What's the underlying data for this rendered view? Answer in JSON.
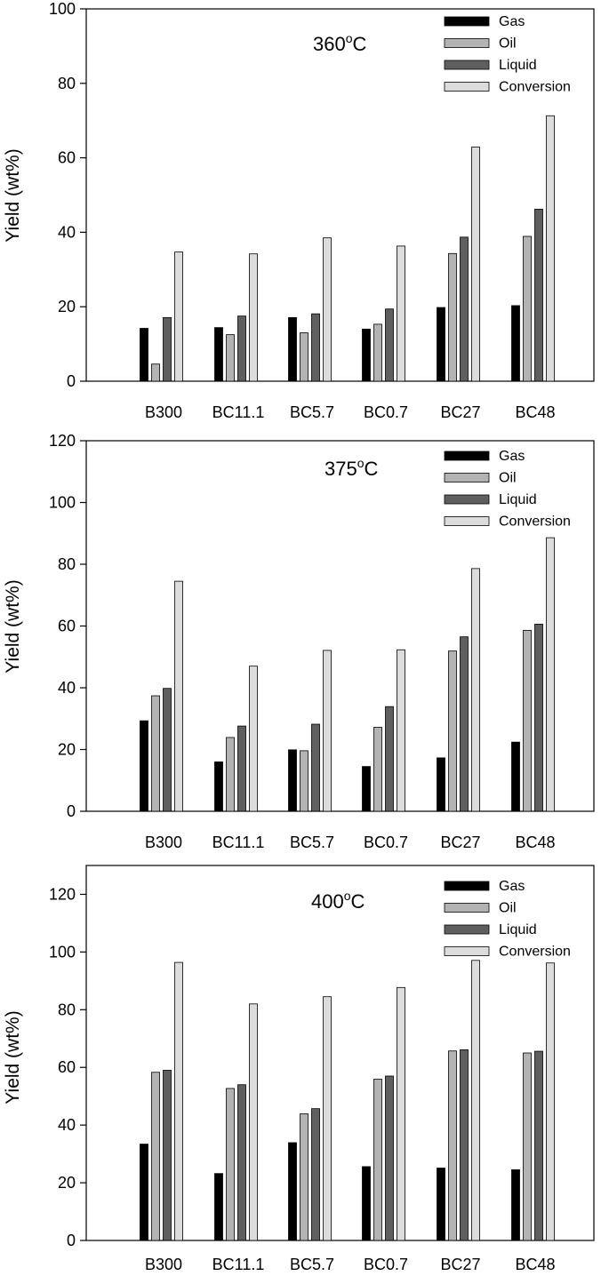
{
  "chart_data": [
    {
      "type": "bar",
      "title_prefix": "360",
      "title_sup": "o",
      "title_suffix": "C",
      "xlabel": "",
      "ylabel": "Yield (wt%)",
      "ylim": [
        0,
        100
      ],
      "yticks": [
        "0",
        "20",
        "40",
        "60",
        "80",
        "100"
      ],
      "categories": [
        "B300",
        "BC11.1",
        "BC5.7",
        "BC0.7",
        "BC27",
        "BC48"
      ],
      "series": [
        {
          "name": "Gas",
          "color": "#000000",
          "values": [
            14.2,
            14.4,
            17.1,
            14.0,
            19.8,
            20.3
          ]
        },
        {
          "name": "Oil",
          "color": "#b3b3b3",
          "values": [
            4.6,
            12.5,
            13.0,
            15.3,
            34.3,
            38.9
          ]
        },
        {
          "name": "Liquid",
          "color": "#5f5f5f",
          "values": [
            17.1,
            17.5,
            18.1,
            19.4,
            38.7,
            46.2
          ]
        },
        {
          "name": "Conversion",
          "color": "#dcdcdc",
          "values": [
            34.7,
            34.2,
            38.5,
            36.3,
            62.9,
            71.3
          ]
        }
      ]
    },
    {
      "type": "bar",
      "title_prefix": "375",
      "title_sup": "o",
      "title_suffix": "C",
      "xlabel": "",
      "ylabel": "Yield (wt%)",
      "ylim": [
        0,
        120
      ],
      "yticks": [
        "0",
        "20",
        "40",
        "60",
        "80",
        "100",
        "120"
      ],
      "categories": [
        "B300",
        "BC11.1",
        "BC5.7",
        "BC0.7",
        "BC27",
        "BC48"
      ],
      "series": [
        {
          "name": "Gas",
          "color": "#000000",
          "values": [
            29.3,
            16.0,
            19.9,
            14.5,
            17.3,
            22.4
          ]
        },
        {
          "name": "Oil",
          "color": "#b3b3b3",
          "values": [
            37.4,
            23.9,
            19.6,
            27.2,
            51.9,
            58.6
          ]
        },
        {
          "name": "Liquid",
          "color": "#5f5f5f",
          "values": [
            39.8,
            27.6,
            28.2,
            33.9,
            56.5,
            60.6
          ]
        },
        {
          "name": "Conversion",
          "color": "#dcdcdc",
          "values": [
            74.5,
            47.0,
            52.1,
            52.3,
            78.6,
            88.6
          ]
        }
      ]
    },
    {
      "type": "bar",
      "title_prefix": "400",
      "title_sup": "o",
      "title_suffix": "C",
      "xlabel": "",
      "ylabel": "Yield (wt%)",
      "ylim": [
        0,
        130
      ],
      "yticks": [
        "0",
        "20",
        "40",
        "60",
        "80",
        "100",
        "120"
      ],
      "categories": [
        "B300",
        "BC11.1",
        "BC5.7",
        "BC0.7",
        "BC27",
        "BC48"
      ],
      "series": [
        {
          "name": "Gas",
          "color": "#000000",
          "values": [
            33.4,
            23.2,
            33.9,
            25.6,
            25.1,
            24.5
          ]
        },
        {
          "name": "Oil",
          "color": "#b3b3b3",
          "values": [
            58.3,
            52.7,
            43.9,
            55.9,
            65.7,
            65.0
          ]
        },
        {
          "name": "Liquid",
          "color": "#5f5f5f",
          "values": [
            59.0,
            54.0,
            45.7,
            57.0,
            66.1,
            65.6
          ]
        },
        {
          "name": "Conversion",
          "color": "#dcdcdc",
          "values": [
            96.4,
            82.0,
            84.5,
            87.7,
            97.1,
            96.2
          ]
        }
      ]
    }
  ]
}
